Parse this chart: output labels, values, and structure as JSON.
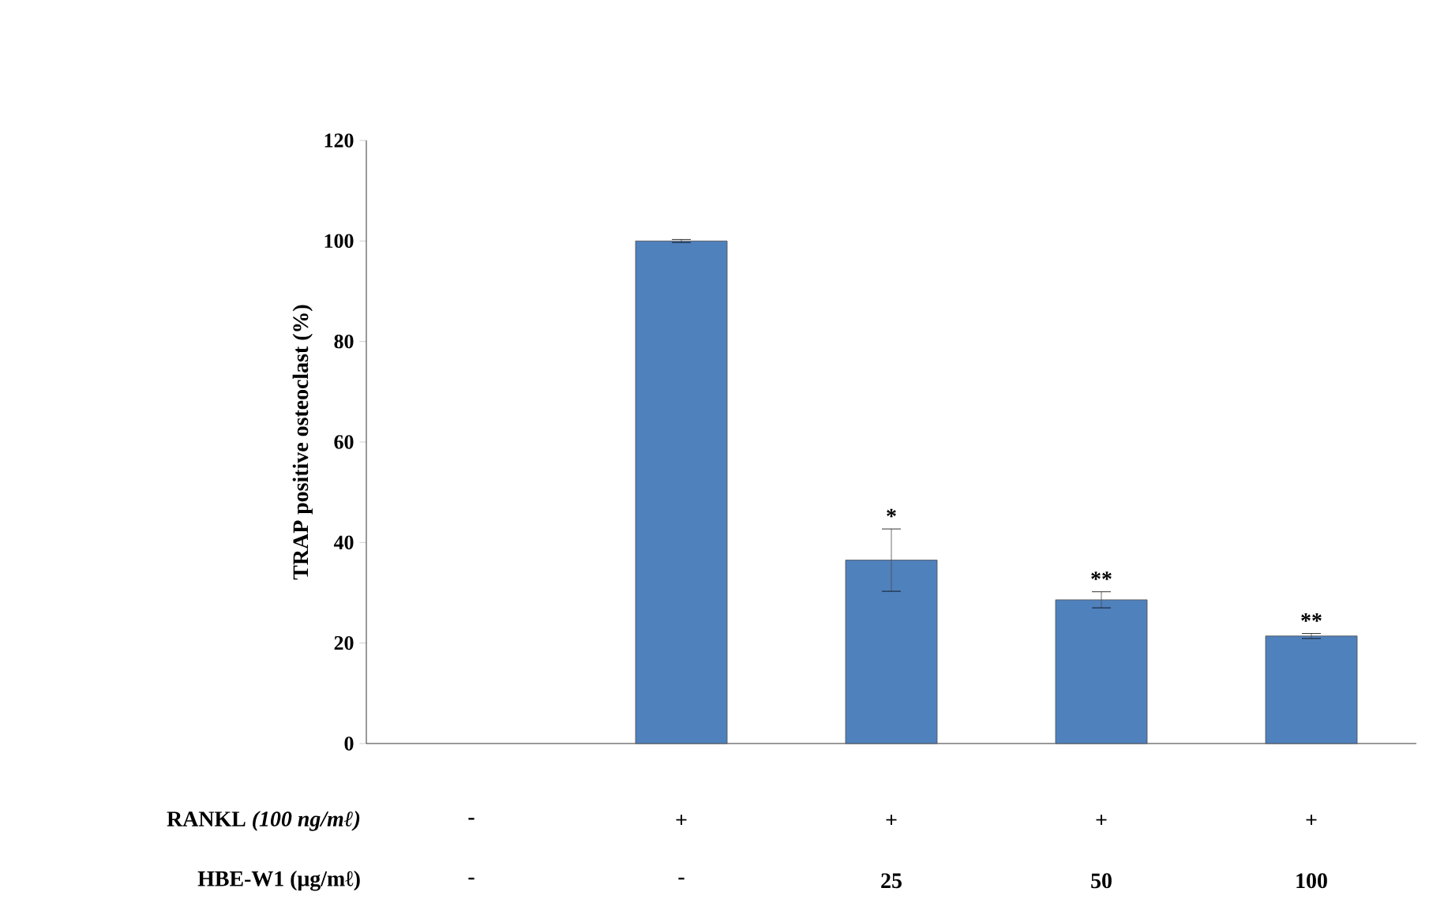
{
  "chart_data": {
    "type": "bar",
    "ylabel": "TRAP positive osteoclast (%)",
    "categories": [
      null,
      null,
      null,
      null,
      null
    ],
    "values": [
      null,
      100,
      36.5,
      28.6,
      21.4
    ],
    "errors": [
      null,
      0.3,
      6.2,
      1.6,
      0.5
    ],
    "color": "#4f81bd",
    "ylim": [
      0,
      120
    ],
    "yticks": [
      0,
      20,
      40,
      60,
      80,
      100,
      120
    ],
    "annotations": [
      {
        "text": "*",
        "y": 42.7
      },
      {
        "text": "**",
        "y": 30.2
      },
      {
        "text": "**",
        "y": 21.9
      },
      "RANKL *(100 ng/mℓ)*",
      "-",
      "+",
      "+",
      "+",
      "+",
      "HBE-W1 (μg/mℓ)",
      "-",
      "-",
      "25",
      "50",
      "100"
    ]
  }
}
